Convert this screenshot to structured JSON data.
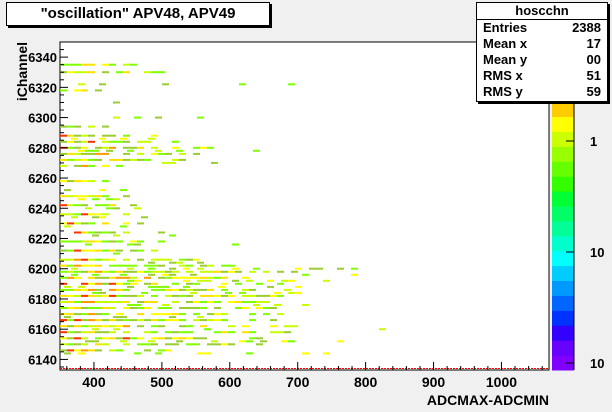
{
  "title": "\"oscillation\" APV48, APV49",
  "stats": {
    "name": "hoscchn",
    "rows": [
      {
        "label": "Entries",
        "value": "2388"
      },
      {
        "label": "Mean x",
        "value": "17"
      },
      {
        "label": "Mean y",
        "value": "00"
      },
      {
        "label": "RMS x",
        "value": "51"
      },
      {
        "label": "RMS y",
        "value": "59"
      }
    ]
  },
  "chart_data": {
    "type": "heatmap",
    "xlabel": "ADCMAX-ADCMIN",
    "ylabel": "iChannel",
    "xlim": [
      350,
      1070
    ],
    "ylim": [
      6133,
      6350
    ],
    "x_ticks": [
      400,
      500,
      600,
      700,
      800,
      900,
      1000
    ],
    "y_ticks": [
      6140,
      6160,
      6180,
      6200,
      6220,
      6240,
      6260,
      6280,
      6300,
      6320,
      6340
    ],
    "colorbar_ticks": [
      "1",
      "10",
      "10"
    ],
    "bands": [
      {
        "y": 6146,
        "x_from": 350,
        "x_to": 520
      },
      {
        "y": 6150,
        "x_from": 350,
        "x_to": 640
      },
      {
        "y": 6154,
        "x_from": 350,
        "x_to": 680
      },
      {
        "y": 6158,
        "x_from": 350,
        "x_to": 700
      },
      {
        "y": 6162,
        "x_from": 350,
        "x_to": 720
      },
      {
        "y": 6166,
        "x_from": 350,
        "x_to": 700
      },
      {
        "y": 6170,
        "x_from": 350,
        "x_to": 680
      },
      {
        "y": 6174,
        "x_from": 350,
        "x_to": 660
      },
      {
        "y": 6178,
        "x_from": 350,
        "x_to": 700
      },
      {
        "y": 6182,
        "x_from": 350,
        "x_to": 720
      },
      {
        "y": 6186,
        "x_from": 350,
        "x_to": 700
      },
      {
        "y": 6190,
        "x_from": 350,
        "x_to": 680
      },
      {
        "y": 6194,
        "x_from": 350,
        "x_to": 700
      },
      {
        "y": 6198,
        "x_from": 350,
        "x_to": 710
      },
      {
        "y": 6202,
        "x_from": 350,
        "x_to": 600
      },
      {
        "y": 6206,
        "x_from": 350,
        "x_to": 560
      },
      {
        "y": 6212,
        "x_from": 350,
        "x_to": 520
      },
      {
        "y": 6218,
        "x_from": 350,
        "x_to": 520
      },
      {
        "y": 6224,
        "x_from": 350,
        "x_to": 500
      },
      {
        "y": 6230,
        "x_from": 350,
        "x_to": 480
      },
      {
        "y": 6236,
        "x_from": 350,
        "x_to": 470
      },
      {
        "y": 6242,
        "x_from": 350,
        "x_to": 460
      },
      {
        "y": 6248,
        "x_from": 350,
        "x_to": 450
      },
      {
        "y": 6258,
        "x_from": 350,
        "x_to": 420
      },
      {
        "y": 6268,
        "x_from": 350,
        "x_to": 460
      },
      {
        "y": 6272,
        "x_from": 350,
        "x_to": 530
      },
      {
        "y": 6276,
        "x_from": 350,
        "x_to": 560
      },
      {
        "y": 6280,
        "x_from": 350,
        "x_to": 580
      },
      {
        "y": 6284,
        "x_from": 350,
        "x_to": 520
      },
      {
        "y": 6288,
        "x_from": 350,
        "x_to": 490
      },
      {
        "y": 6294,
        "x_from": 350,
        "x_to": 420
      },
      {
        "y": 6318,
        "x_from": 350,
        "x_to": 420
      },
      {
        "y": 6330,
        "x_from": 350,
        "x_to": 500
      },
      {
        "y": 6335,
        "x_from": 350,
        "x_to": 470
      }
    ],
    "scatter_y": [
      6144,
      6152,
      6160,
      6168,
      6176,
      6184,
      6188,
      6192,
      6196,
      6200,
      6204,
      6210,
      6216,
      6222,
      6228,
      6234,
      6240,
      6246,
      6252,
      6262,
      6270,
      6278,
      6286,
      6300,
      6310,
      6322
    ],
    "scatter_x_max": [
      820,
      760,
      860,
      740,
      780,
      740,
      700,
      770,
      800,
      780,
      690,
      620,
      640,
      560,
      520,
      540,
      480,
      470,
      460,
      430,
      600,
      660,
      520,
      560,
      470,
      720
    ]
  }
}
